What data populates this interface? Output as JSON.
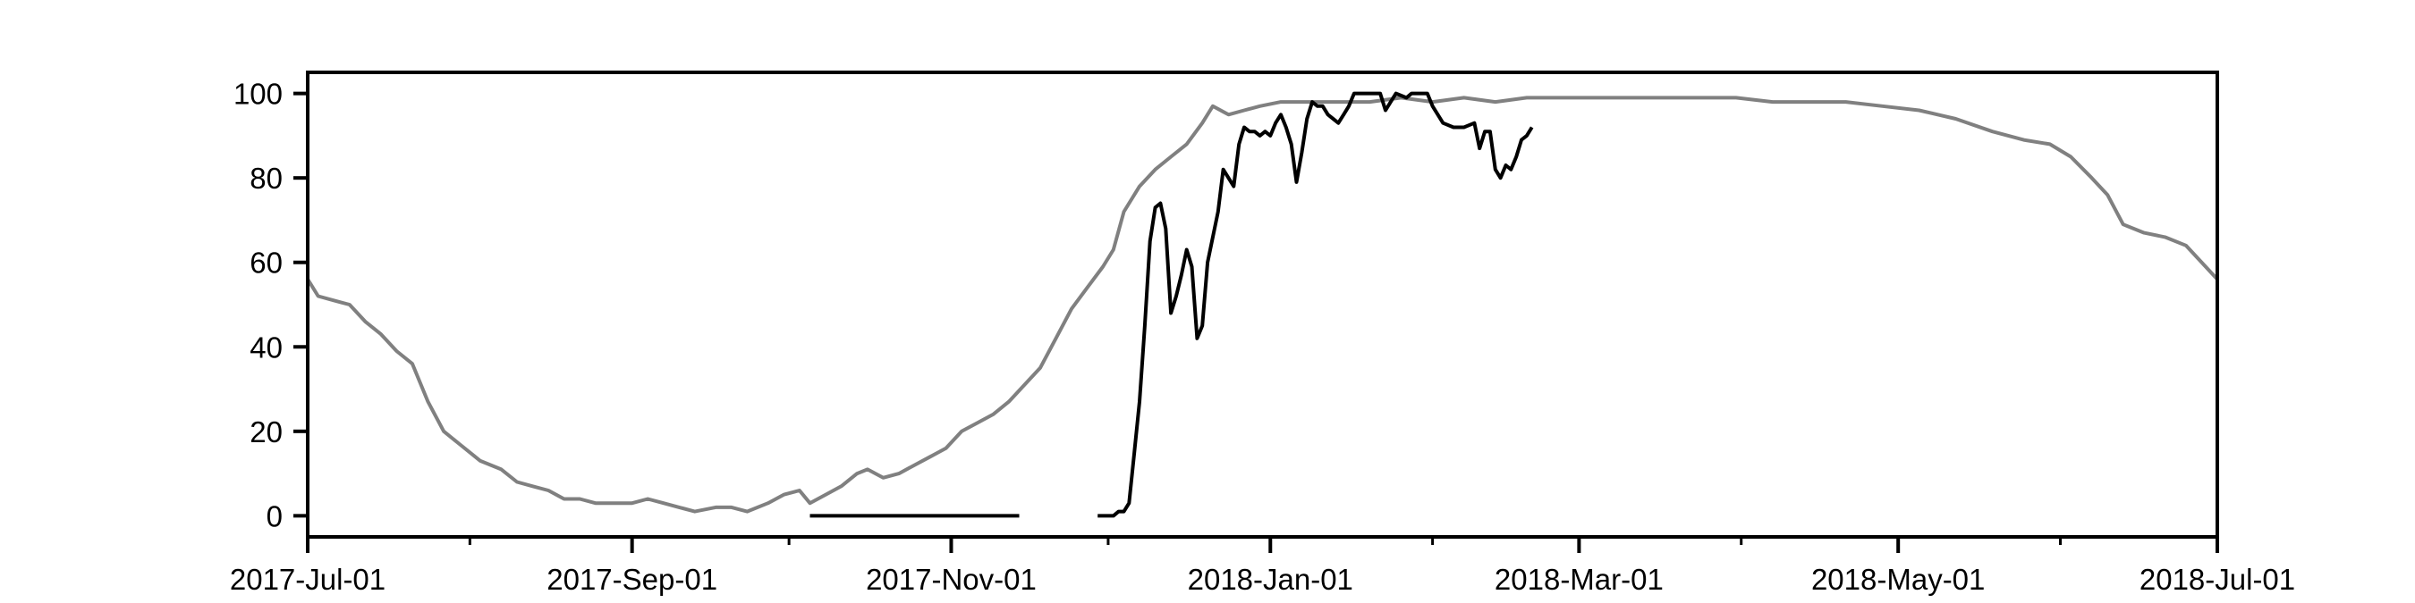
{
  "chart_data": {
    "type": "line",
    "title": "",
    "xlabel": "",
    "ylabel": "",
    "xlim": [
      "2017-07-01",
      "2018-07-01"
    ],
    "ylim": [
      -5,
      105
    ],
    "yticks": [
      0,
      20,
      40,
      60,
      80,
      100
    ],
    "xticks": [
      {
        "date": "2017-07-01",
        "label": "2017-Jul-01"
      },
      {
        "date": "2017-09-01",
        "label": "2017-Sep-01"
      },
      {
        "date": "2017-11-01",
        "label": "2017-Nov-01"
      },
      {
        "date": "2018-01-01",
        "label": "2018-Jan-01"
      },
      {
        "date": "2018-03-01",
        "label": "2018-Mar-01"
      },
      {
        "date": "2018-05-01",
        "label": "2018-May-01"
      },
      {
        "date": "2018-07-01",
        "label": "2018-Jul-01"
      }
    ],
    "grid": false,
    "series": [
      {
        "color": "#808080",
        "points": [
          [
            "2017-07-01",
            56
          ],
          [
            "2017-07-03",
            52
          ],
          [
            "2017-07-06",
            51
          ],
          [
            "2017-07-09",
            50
          ],
          [
            "2017-07-12",
            46
          ],
          [
            "2017-07-15",
            43
          ],
          [
            "2017-07-18",
            39
          ],
          [
            "2017-07-21",
            36
          ],
          [
            "2017-07-24",
            27
          ],
          [
            "2017-07-27",
            20
          ],
          [
            "2017-07-30",
            17
          ],
          [
            "2017-08-03",
            13
          ],
          [
            "2017-08-07",
            11
          ],
          [
            "2017-08-10",
            8
          ],
          [
            "2017-08-13",
            7
          ],
          [
            "2017-08-16",
            6
          ],
          [
            "2017-08-19",
            4
          ],
          [
            "2017-08-22",
            4
          ],
          [
            "2017-08-25",
            3
          ],
          [
            "2017-08-28",
            3
          ],
          [
            "2017-09-01",
            3
          ],
          [
            "2017-09-04",
            4
          ],
          [
            "2017-09-07",
            3
          ],
          [
            "2017-09-10",
            2
          ],
          [
            "2017-09-13",
            1
          ],
          [
            "2017-09-17",
            2
          ],
          [
            "2017-09-20",
            2
          ],
          [
            "2017-09-23",
            1
          ],
          [
            "2017-09-27",
            3
          ],
          [
            "2017-09-30",
            5
          ],
          [
            "2017-10-03",
            6
          ],
          [
            "2017-10-05",
            3
          ],
          [
            "2017-10-08",
            5
          ],
          [
            "2017-10-11",
            7
          ],
          [
            "2017-10-14",
            10
          ],
          [
            "2017-10-16",
            11
          ],
          [
            "2017-10-19",
            9
          ],
          [
            "2017-10-22",
            10
          ],
          [
            "2017-10-25",
            12
          ],
          [
            "2017-10-28",
            14
          ],
          [
            "2017-10-31",
            16
          ],
          [
            "2017-11-03",
            20
          ],
          [
            "2017-11-06",
            22
          ],
          [
            "2017-11-09",
            24
          ],
          [
            "2017-11-12",
            27
          ],
          [
            "2017-11-15",
            31
          ],
          [
            "2017-11-18",
            35
          ],
          [
            "2017-11-21",
            42
          ],
          [
            "2017-11-24",
            49
          ],
          [
            "2017-11-27",
            54
          ],
          [
            "2017-11-30",
            59
          ],
          [
            "2017-12-02",
            63
          ],
          [
            "2017-12-04",
            72
          ],
          [
            "2017-12-07",
            78
          ],
          [
            "2017-12-10",
            82
          ],
          [
            "2017-12-13",
            85
          ],
          [
            "2017-12-16",
            88
          ],
          [
            "2017-12-19",
            93
          ],
          [
            "2017-12-21",
            97
          ],
          [
            "2017-12-24",
            95
          ],
          [
            "2017-12-27",
            96
          ],
          [
            "2017-12-30",
            97
          ],
          [
            "2018-01-03",
            98
          ],
          [
            "2018-01-08",
            98
          ],
          [
            "2018-01-14",
            98
          ],
          [
            "2018-01-20",
            98
          ],
          [
            "2018-01-26",
            99
          ],
          [
            "2018-02-01",
            98
          ],
          [
            "2018-02-07",
            99
          ],
          [
            "2018-02-13",
            98
          ],
          [
            "2018-02-19",
            99
          ],
          [
            "2018-02-25",
            99
          ],
          [
            "2018-03-03",
            99
          ],
          [
            "2018-03-10",
            99
          ],
          [
            "2018-03-17",
            99
          ],
          [
            "2018-03-24",
            99
          ],
          [
            "2018-03-31",
            99
          ],
          [
            "2018-04-07",
            98
          ],
          [
            "2018-04-14",
            98
          ],
          [
            "2018-04-21",
            98
          ],
          [
            "2018-04-28",
            97
          ],
          [
            "2018-05-05",
            96
          ],
          [
            "2018-05-12",
            94
          ],
          [
            "2018-05-19",
            91
          ],
          [
            "2018-05-25",
            89
          ],
          [
            "2018-05-30",
            88
          ],
          [
            "2018-06-03",
            85
          ],
          [
            "2018-06-07",
            80
          ],
          [
            "2018-06-10",
            76
          ],
          [
            "2018-06-13",
            69
          ],
          [
            "2018-06-17",
            67
          ],
          [
            "2018-06-21",
            66
          ],
          [
            "2018-06-25",
            64
          ],
          [
            "2018-06-28",
            60
          ],
          [
            "2018-07-01",
            56
          ]
        ]
      },
      {
        "color": "#000000",
        "points": [
          [
            "2017-10-05",
            0
          ],
          [
            "2017-11-14",
            0
          ]
        ]
      },
      {
        "color": "#000000",
        "points": [
          [
            "2017-11-29",
            0
          ],
          [
            "2017-12-02",
            0
          ],
          [
            "2017-12-03",
            1
          ],
          [
            "2017-12-04",
            1
          ],
          [
            "2017-12-05",
            3
          ],
          [
            "2017-12-06",
            15
          ],
          [
            "2017-12-07",
            27
          ],
          [
            "2017-12-08",
            45
          ],
          [
            "2017-12-09",
            65
          ],
          [
            "2017-12-10",
            73
          ],
          [
            "2017-12-11",
            74
          ],
          [
            "2017-12-12",
            68
          ],
          [
            "2017-12-13",
            48
          ],
          [
            "2017-12-14",
            52
          ],
          [
            "2017-12-15",
            57
          ],
          [
            "2017-12-16",
            63
          ],
          [
            "2017-12-17",
            59
          ],
          [
            "2017-12-18",
            42
          ],
          [
            "2017-12-19",
            45
          ],
          [
            "2017-12-20",
            60
          ],
          [
            "2017-12-22",
            72
          ],
          [
            "2017-12-23",
            82
          ],
          [
            "2017-12-25",
            78
          ],
          [
            "2017-12-26",
            88
          ],
          [
            "2017-12-27",
            92
          ],
          [
            "2017-12-28",
            91
          ],
          [
            "2017-12-29",
            91
          ],
          [
            "2017-12-30",
            90
          ],
          [
            "2017-12-31",
            91
          ],
          [
            "2018-01-01",
            90
          ],
          [
            "2018-01-02",
            93
          ],
          [
            "2018-01-03",
            95
          ],
          [
            "2018-01-04",
            92
          ],
          [
            "2018-01-05",
            88
          ],
          [
            "2018-01-06",
            79
          ],
          [
            "2018-01-07",
            86
          ],
          [
            "2018-01-08",
            94
          ],
          [
            "2018-01-09",
            98
          ],
          [
            "2018-01-10",
            97
          ],
          [
            "2018-01-11",
            97
          ],
          [
            "2018-01-12",
            95
          ],
          [
            "2018-01-13",
            94
          ],
          [
            "2018-01-14",
            93
          ],
          [
            "2018-01-15",
            95
          ],
          [
            "2018-01-16",
            97
          ],
          [
            "2018-01-17",
            100
          ],
          [
            "2018-01-20",
            100
          ],
          [
            "2018-01-22",
            100
          ],
          [
            "2018-01-23",
            96
          ],
          [
            "2018-01-24",
            98
          ],
          [
            "2018-01-25",
            100
          ],
          [
            "2018-01-27",
            99
          ],
          [
            "2018-01-28",
            100
          ],
          [
            "2018-01-31",
            100
          ],
          [
            "2018-02-01",
            97
          ],
          [
            "2018-02-03",
            93
          ],
          [
            "2018-02-05",
            92
          ],
          [
            "2018-02-07",
            92
          ],
          [
            "2018-02-09",
            93
          ],
          [
            "2018-02-10",
            87
          ],
          [
            "2018-02-11",
            91
          ],
          [
            "2018-02-12",
            91
          ],
          [
            "2018-02-13",
            82
          ],
          [
            "2018-02-14",
            80
          ],
          [
            "2018-02-15",
            83
          ],
          [
            "2018-02-16",
            82
          ],
          [
            "2018-02-17",
            85
          ],
          [
            "2018-02-18",
            89
          ],
          [
            "2018-02-19",
            90
          ],
          [
            "2018-02-20",
            92
          ]
        ]
      }
    ]
  }
}
